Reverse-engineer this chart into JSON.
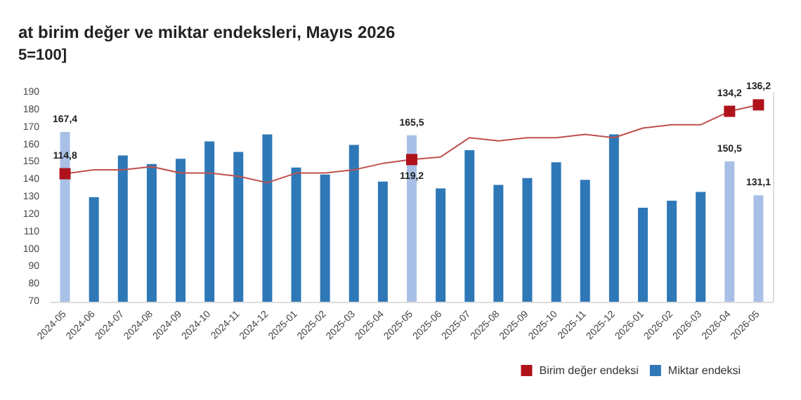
{
  "chart_data": {
    "type": "bar",
    "title": "at birim değer ve miktar endeksleri, Mayıs 2026",
    "subtitle": "5=100]",
    "categories": [
      "2024-05",
      "2024-06",
      "2024-07",
      "2024-08",
      "2024-09",
      "2024-10",
      "2024-11",
      "2024-12",
      "2025-01",
      "2025-02",
      "2025-03",
      "2025-04",
      "2025-05",
      "2025-06",
      "2025-07",
      "2025-08",
      "2025-09",
      "2025-10",
      "2025-11",
      "2025-12",
      "2026-01",
      "2026-02",
      "2026-03",
      "2026-04",
      "2026-05"
    ],
    "series": [
      {
        "name": "Miktar endeksi",
        "color": "#2e78b7",
        "colors": [
          "#a9c0e6",
          "#2e78b7",
          "#2e78b7",
          "#2e78b7",
          "#2e78b7",
          "#2e78b7",
          "#2e78b7",
          "#2e78b7",
          "#2e78b7",
          "#2e78b7",
          "#2e78b7",
          "#2e78b7",
          "#a9c0e6",
          "#2e78b7",
          "#2e78b7",
          "#2e78b7",
          "#2e78b7",
          "#2e78b7",
          "#2e78b7",
          "#2e78b7",
          "#2e78b7",
          "#2e78b7",
          "#2e78b7",
          "#a9c0e6",
          "#a9c0e6"
        ],
        "values": [
          167.4,
          130,
          154,
          149,
          152,
          162,
          156,
          166,
          147,
          143,
          160,
          139,
          165.5,
          135,
          157,
          137,
          141,
          150,
          140,
          166,
          124,
          128,
          133,
          150.5,
          131.1
        ],
        "value_labels": [
          "167,4",
          null,
          null,
          null,
          null,
          null,
          null,
          null,
          null,
          null,
          null,
          null,
          "165,5",
          null,
          null,
          null,
          null,
          null,
          null,
          null,
          null,
          null,
          null,
          "150,5",
          "131,1"
        ]
      },
      {
        "name": "Birim değer endeksi",
        "type": "line",
        "axis": "y2",
        "color": "#c0504d",
        "colors": [
          "#b0121b",
          null,
          null,
          null,
          null,
          null,
          null,
          null,
          null,
          null,
          null,
          null,
          "#b0121b",
          null,
          null,
          null,
          null,
          null,
          null,
          null,
          null,
          null,
          null,
          "#b0121b",
          "#b0121b"
        ],
        "values": [
          114.8,
          116,
          116,
          117,
          115,
          115,
          114,
          112,
          115,
          115,
          116,
          118,
          119.2,
          120,
          126,
          125,
          126,
          126,
          127,
          126,
          129,
          130,
          130,
          134.2,
          136.2
        ],
        "value_labels": [
          "114,8",
          null,
          null,
          null,
          null,
          null,
          null,
          null,
          null,
          null,
          null,
          null,
          "119,2",
          null,
          null,
          null,
          null,
          null,
          null,
          null,
          null,
          null,
          null,
          "134,2",
          "136,2"
        ]
      }
    ],
    "ylim": [
      70,
      190
    ],
    "yticks": [
      70,
      80,
      90,
      100,
      110,
      120,
      130,
      140,
      150,
      160,
      170,
      180,
      190
    ],
    "y2lim": [
      75,
      140
    ],
    "legend": "bottom right",
    "grid": false
  }
}
